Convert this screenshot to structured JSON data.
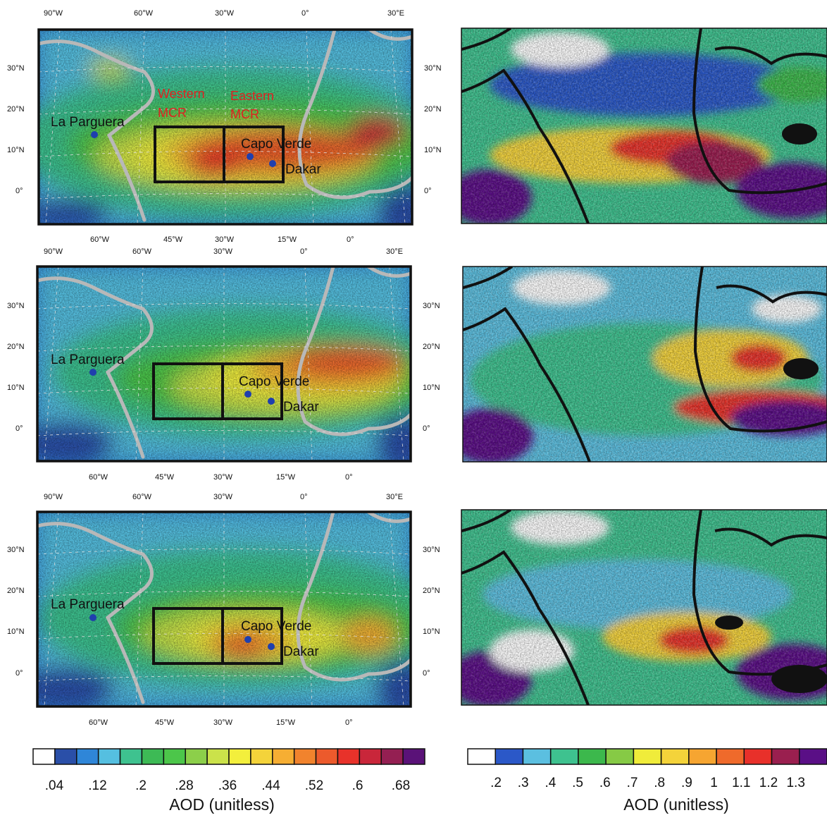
{
  "colors": {
    "left_palette": [
      "#ffffff",
      "#2a4fa8",
      "#2f86d8",
      "#55bfe0",
      "#3ec28f",
      "#3dba55",
      "#4cc64a",
      "#8ccf4a",
      "#cbe24a",
      "#f3ef3c",
      "#f4d33a",
      "#f6ae33",
      "#f1832d",
      "#ec5a2c",
      "#e8322a",
      "#c9263a",
      "#941f52",
      "#5a1278"
    ],
    "right_palette": [
      "#ffffff",
      "#2b58c8",
      "#5bbfe0",
      "#3ec28f",
      "#3cb84c",
      "#86ca45",
      "#f0ec3a",
      "#f4d33a",
      "#f6a531",
      "#ef6a2b",
      "#e8302a",
      "#9a1f4f",
      "#5a0f86"
    ],
    "land": "#b8b8b8",
    "coast": "#1a1a1a",
    "site_marker": "#1f3fae",
    "mcr_label": "#e02020"
  },
  "left_maps": {
    "top_lon_labels": [
      "90°W",
      "60°W",
      "30°W",
      "0°",
      "30°E"
    ],
    "bottom_lon_labels": [
      "60°W",
      "45°W",
      "30°W",
      "15°W",
      "0°"
    ],
    "lat_labels": [
      "30°N",
      "20°N",
      "10°N",
      "0°"
    ],
    "sites": {
      "la_parguera": "La Parguera",
      "capo_verde": "Capo Verde",
      "dakar": "Dakar"
    },
    "regions": {
      "western": [
        "Western",
        "MCR"
      ],
      "eastern": [
        "Eastern",
        "MCR"
      ]
    }
  },
  "left_colorbar": {
    "tick_labels": [
      ".04",
      ".12",
      ".2",
      ".28",
      ".36",
      ".44",
      ".52",
      ".6",
      ".68"
    ],
    "title": "AOD (unitless)"
  },
  "right_colorbar": {
    "tick_labels": [
      ".2",
      ".3",
      ".4",
      ".5",
      ".6",
      ".7",
      ".8",
      ".9",
      "1",
      "1.1",
      "1.2",
      "1.3"
    ],
    "title": "AOD (unitless)"
  }
}
